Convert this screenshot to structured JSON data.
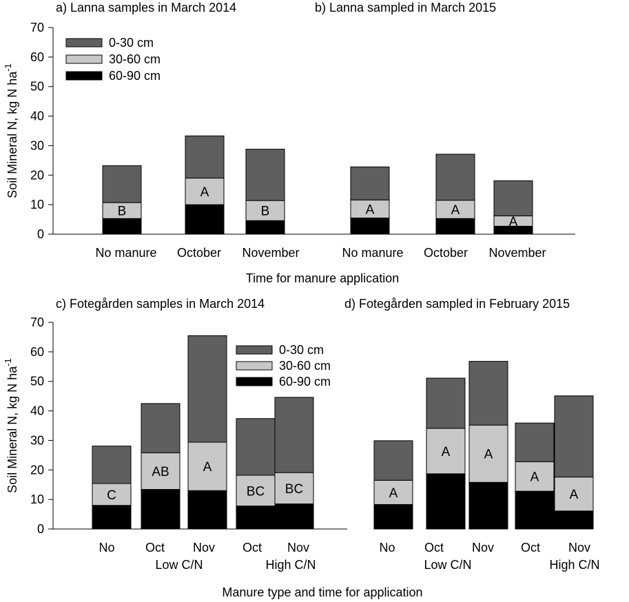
{
  "colors": {
    "layer_0_30": "#5f5f5f",
    "layer_30_60": "#c8c8c8",
    "layer_60_90": "#000000",
    "axis": "#000000",
    "background": "#ffffff"
  },
  "legend": {
    "labels": [
      "0-30 cm",
      "30-60 cm",
      "60-90 cm"
    ]
  },
  "top": {
    "y_label": "Soil Mineral N, kg N ha",
    "y_label_sup": "-1",
    "x_label": "Time for manure application"
  },
  "bottom": {
    "y_label": "Soil Mineral N, kg N ha",
    "y_label_sup": "-1",
    "x_label": "Manure type and time for application",
    "group_labels": [
      "Low C/N",
      "Low C/N",
      "High C/N",
      "High C/N"
    ]
  },
  "chart_data": [
    {
      "panel": "a",
      "type": "bar",
      "stacked": true,
      "title": "a) Lanna samples in March 2014",
      "ylabel": "Soil Mineral N, kg N ha-1",
      "xlabel": "Time for manure application",
      "ylim": [
        0,
        70
      ],
      "yticks": [
        0,
        10,
        20,
        30,
        40,
        50,
        60,
        70
      ],
      "categories": [
        "No manure",
        "October",
        "November"
      ],
      "series": [
        {
          "name": "60-90 cm",
          "values": [
            5.3,
            10.0,
            4.6
          ]
        },
        {
          "name": "30-60 cm",
          "values": [
            5.4,
            9.0,
            6.8
          ]
        },
        {
          "name": "0-30 cm",
          "values": [
            12.5,
            14.3,
            17.4
          ]
        }
      ],
      "letters": [
        "B",
        "A",
        "B"
      ],
      "legend_position": "top-left"
    },
    {
      "panel": "b",
      "type": "bar",
      "stacked": true,
      "title": "b) Lanna sampled in March 2015",
      "ylim": [
        0,
        70
      ],
      "categories": [
        "No manure",
        "October",
        "November"
      ],
      "series": [
        {
          "name": "60-90 cm",
          "values": [
            5.5,
            5.3,
            2.7
          ]
        },
        {
          "name": "30-60 cm",
          "values": [
            6.1,
            6.2,
            3.5
          ]
        },
        {
          "name": "0-30 cm",
          "values": [
            11.2,
            15.6,
            11.9
          ]
        }
      ],
      "letters": [
        "A",
        "A",
        "A"
      ]
    },
    {
      "panel": "c",
      "type": "bar",
      "stacked": true,
      "title": "c) Fotegården samples in March 2014",
      "ylabel": "Soil Mineral N, kg N ha-1",
      "xlabel": "Manure type and time for application",
      "ylim": [
        0,
        70
      ],
      "yticks": [
        0,
        10,
        20,
        30,
        40,
        50,
        60,
        70
      ],
      "categories": [
        "No",
        "Oct",
        "Nov",
        "Oct",
        "Nov"
      ],
      "series": [
        {
          "name": "60-90 cm",
          "values": [
            8.0,
            13.4,
            13.0,
            7.8,
            8.5
          ]
        },
        {
          "name": "30-60 cm",
          "values": [
            7.4,
            12.4,
            16.4,
            10.4,
            10.6
          ]
        },
        {
          "name": "0-30 cm",
          "values": [
            12.7,
            16.7,
            36.1,
            19.2,
            25.5
          ]
        }
      ],
      "letters": [
        "C",
        "AB",
        "A",
        "BC",
        "BC"
      ],
      "legend_position": "top-right"
    },
    {
      "panel": "d",
      "type": "bar",
      "stacked": true,
      "title": "d) Fotegården sampled in February 2015",
      "ylim": [
        0,
        70
      ],
      "categories": [
        "No",
        "Oct",
        "Nov",
        "Oct",
        "Nov"
      ],
      "series": [
        {
          "name": "60-90 cm",
          "values": [
            8.3,
            18.7,
            15.8,
            12.8,
            6.1
          ]
        },
        {
          "name": "30-60 cm",
          "values": [
            8.2,
            15.4,
            19.4,
            10.0,
            11.5
          ]
        },
        {
          "name": "0-30 cm",
          "values": [
            13.4,
            17.0,
            21.6,
            13.1,
            27.5
          ]
        }
      ],
      "letters": [
        "A",
        "A",
        "A",
        "A",
        "A"
      ]
    }
  ]
}
